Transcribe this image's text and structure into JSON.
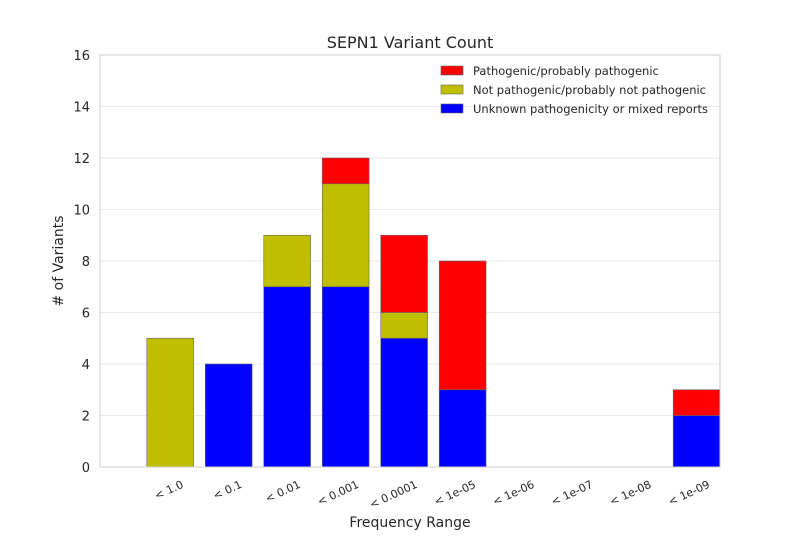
{
  "chart_data": {
    "type": "bar",
    "stacked": true,
    "title": "SEPN1 Variant Count",
    "xlabel": "Frequency Range",
    "ylabel": "# of Variants",
    "ylim": [
      0,
      16
    ],
    "yticks": [
      "0",
      "2",
      "4",
      "6",
      "8",
      "10",
      "12",
      "14",
      "16"
    ],
    "categories": [
      "< 1.0",
      "< 0.1",
      "< 0.01",
      "< 0.001",
      "< 0.0001",
      "< 1e-05",
      "< 1e-06",
      "< 1e-07",
      "< 1e-08",
      "< 1e-09"
    ],
    "series": [
      {
        "name": "Unknown pathogenicity or mixed reports",
        "color": "#0000ff",
        "values": [
          0,
          4,
          7,
          7,
          5,
          3,
          0,
          0,
          0,
          2
        ]
      },
      {
        "name": "Not pathogenic/probably not pathogenic",
        "color": "#bfbf00",
        "values": [
          5,
          0,
          2,
          4,
          1,
          0,
          0,
          0,
          0,
          0
        ]
      },
      {
        "name": "Pathogenic/probably pathogenic",
        "color": "#ff0000",
        "values": [
          0,
          0,
          0,
          1,
          3,
          5,
          0,
          0,
          0,
          1
        ]
      }
    ],
    "legend_order": [
      2,
      1,
      0
    ],
    "legend_position": "top-right",
    "grid": true
  }
}
